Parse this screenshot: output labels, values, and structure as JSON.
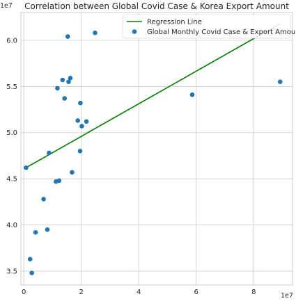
{
  "chart_data": {
    "type": "scatter",
    "title": "Correlation between Global Covid Case & Korea Export Amount",
    "xlabel": "",
    "ylabel": "",
    "x_offset_label": "1e7",
    "y_offset_label": "1e7",
    "xlim": [
      -0.1,
      9.35
    ],
    "ylim": [
      3.35,
      6.3
    ],
    "x_ticks": [
      0,
      2,
      4,
      6,
      8
    ],
    "x_tick_labels": [
      "0",
      "2",
      "4",
      "6",
      "8"
    ],
    "y_ticks": [
      3.5,
      4.0,
      4.5,
      5.0,
      5.5,
      6.0
    ],
    "y_tick_labels": [
      "3.5",
      "4.0",
      "4.5",
      "5.0",
      "5.5",
      "6.0"
    ],
    "grid": true,
    "legend_position": "top-right",
    "colors": {
      "points": "#1f77b4",
      "regression": "#008000",
      "grid": "#cccccc",
      "frame": "#cccccc"
    },
    "series": [
      {
        "name": "Global Monthly Covid Case & Export Amount",
        "kind": "scatter",
        "x": [
          0.08,
          0.22,
          0.28,
          0.41,
          0.69,
          0.82,
          0.88,
          1.12,
          1.17,
          1.23,
          1.35,
          1.42,
          1.53,
          1.56,
          1.62,
          1.68,
          1.88,
          1.96,
          1.97,
          2.02,
          2.18,
          2.48,
          5.86,
          8.92
        ],
        "y": [
          4.62,
          3.63,
          3.48,
          3.92,
          4.28,
          3.95,
          4.78,
          4.47,
          5.48,
          4.48,
          5.57,
          5.37,
          6.04,
          5.55,
          5.59,
          4.57,
          5.13,
          4.8,
          5.32,
          5.07,
          5.12,
          6.08,
          5.41,
          5.55
        ]
      },
      {
        "name": "Regression Line",
        "kind": "line",
        "x": [
          0.08,
          8.92
        ],
        "y": [
          4.62,
          6.18
        ]
      }
    ]
  }
}
